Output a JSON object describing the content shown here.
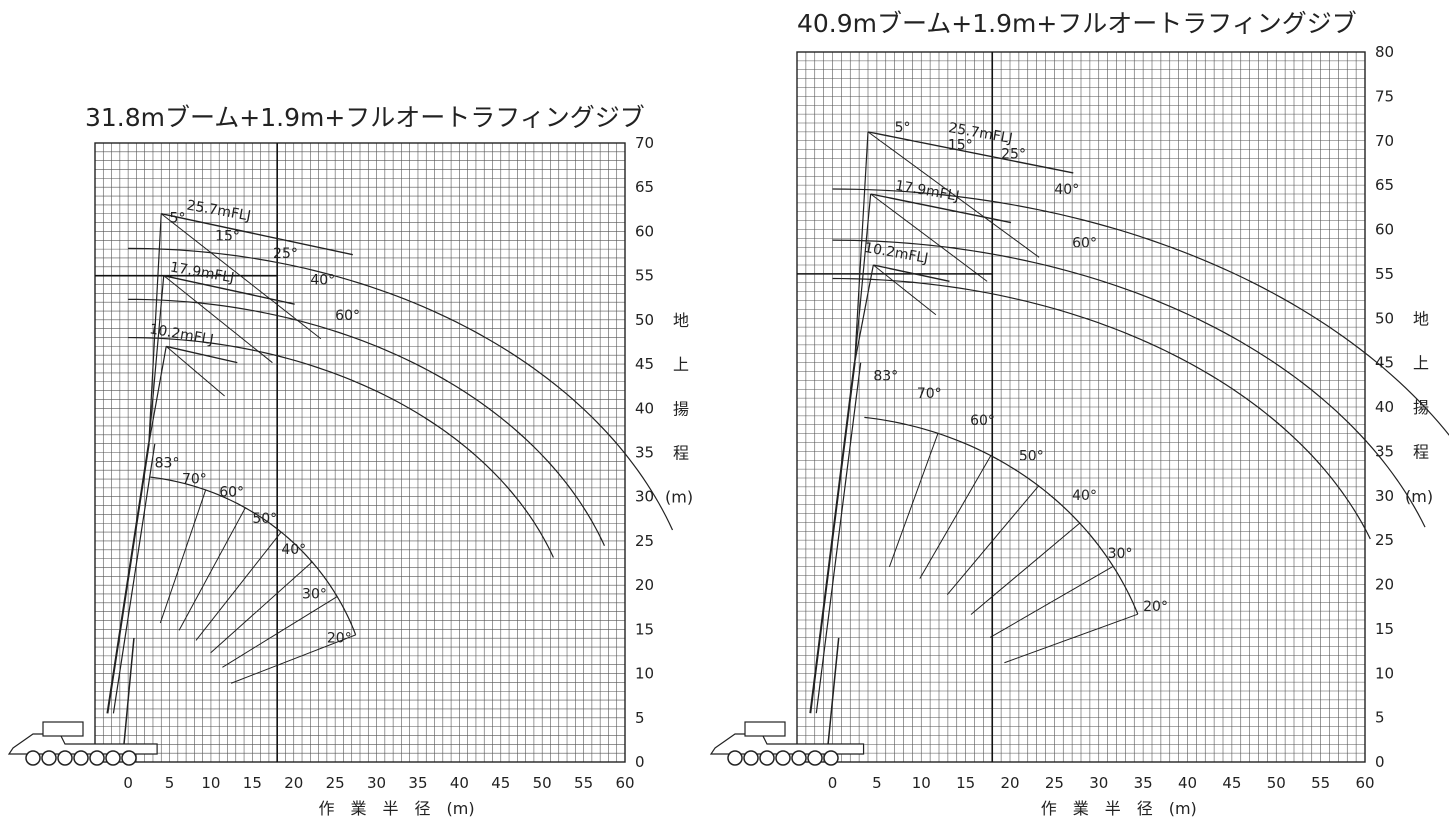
{
  "charts": [
    {
      "title": "31.8mブーム+1.9m+フルオートラフィングジブ",
      "x_ticks": [
        "0",
        "5",
        "10",
        "15",
        "20",
        "25",
        "30",
        "35",
        "40",
        "45",
        "50",
        "55",
        "60"
      ],
      "y_ticks": [
        "0",
        "5",
        "10",
        "15",
        "20",
        "25",
        "30",
        "35",
        "40",
        "45",
        "50",
        "55",
        "60",
        "65",
        "70"
      ],
      "xlabel": "作　業　半　径　(m)",
      "ylabel_chars": [
        "地",
        "上",
        "揚",
        "程"
      ],
      "ylabel_unit": "(m)",
      "jib_labels": [
        "25.7mFLJ",
        "17.9mFLJ",
        "10.2mFLJ"
      ],
      "offset_labels": [
        "5°",
        "15°",
        "25°",
        "40°",
        "60°"
      ],
      "boom_labels": [
        "83°",
        "70°",
        "60°",
        "50°",
        "40°",
        "30°",
        "20°"
      ]
    },
    {
      "title": "40.9mブーム+1.9m+フルオートラフィングジブ",
      "x_ticks": [
        "0",
        "5",
        "10",
        "15",
        "20",
        "25",
        "30",
        "35",
        "40",
        "45",
        "50",
        "55",
        "60"
      ],
      "y_ticks": [
        "0",
        "5",
        "10",
        "15",
        "20",
        "25",
        "30",
        "35",
        "40",
        "45",
        "50",
        "55",
        "60",
        "65",
        "70",
        "75",
        "80"
      ],
      "xlabel": "作　業　半　径　(m)",
      "ylabel_chars": [
        "地",
        "上",
        "揚",
        "程"
      ],
      "ylabel_unit": "(m)",
      "jib_labels": [
        "25.7mFLJ",
        "17.9mFLJ",
        "10.2mFLJ"
      ],
      "offset_labels": [
        "5°",
        "15°",
        "25°",
        "40°",
        "60°"
      ],
      "boom_labels": [
        "83°",
        "70°",
        "60°",
        "50°",
        "40°",
        "30°",
        "20°"
      ]
    }
  ]
}
